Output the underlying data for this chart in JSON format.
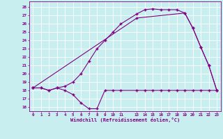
{
  "xlabel": "Windchill (Refroidissement éolien,°C)",
  "bg_color": "#c8eef0",
  "line_color": "#800080",
  "grid_color": "#ffffff",
  "xlim": [
    -0.5,
    23.5
  ],
  "ylim": [
    15.5,
    28.7
  ],
  "yticks": [
    16,
    17,
    18,
    19,
    20,
    21,
    22,
    23,
    24,
    25,
    26,
    27,
    28
  ],
  "xticks": [
    0,
    1,
    2,
    3,
    4,
    5,
    6,
    7,
    8,
    9,
    10,
    11,
    13,
    14,
    15,
    16,
    17,
    18,
    19,
    20,
    21,
    22,
    23
  ],
  "line1_x": [
    0,
    1,
    2,
    3,
    4,
    5,
    6,
    7,
    8,
    9,
    10,
    11,
    13,
    14,
    15,
    16,
    17,
    18,
    19,
    20,
    21,
    22,
    23
  ],
  "line1_y": [
    18.3,
    18.3,
    18.0,
    18.3,
    18.0,
    17.5,
    16.5,
    15.8,
    15.8,
    18.0,
    18.0,
    18.0,
    18.0,
    18.0,
    18.0,
    18.0,
    18.0,
    18.0,
    18.0,
    18.0,
    18.0,
    18.0,
    18.0
  ],
  "line2_x": [
    0,
    1,
    2,
    3,
    4,
    5,
    6,
    7,
    8,
    9,
    10,
    11,
    13,
    14,
    15,
    16,
    17,
    18,
    19,
    20,
    21,
    22,
    23
  ],
  "line2_y": [
    18.3,
    18.3,
    18.0,
    18.3,
    18.5,
    19.0,
    20.0,
    21.5,
    23.0,
    24.0,
    25.0,
    26.0,
    27.2,
    27.7,
    27.8,
    27.7,
    27.7,
    27.7,
    27.3,
    25.5,
    23.2,
    21.0,
    18.0
  ],
  "line3_x": [
    0,
    13,
    19,
    20,
    21,
    22,
    23
  ],
  "line3_y": [
    18.3,
    26.7,
    27.3,
    25.5,
    23.2,
    21.0,
    18.0
  ]
}
